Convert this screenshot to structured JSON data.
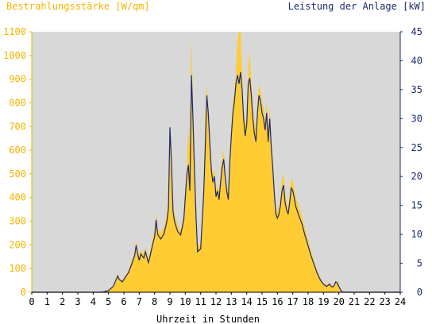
{
  "chart_data": {
    "type": "area",
    "title_left": "Bestrahlungsstärke [W/qm]",
    "title_right": "Leistung der Anlage [kW]",
    "xlabel": "Uhrzeit in Stunden",
    "x_ticks": [
      "0",
      "1",
      "2",
      "3",
      "4",
      "5",
      "6",
      "7",
      "8",
      "9",
      "10",
      "11",
      "12",
      "13",
      "14",
      "15",
      "16",
      "17",
      "18",
      "19",
      "20",
      "21",
      "22",
      "23",
      "24"
    ],
    "y_left_ticks": [
      "0",
      "100",
      "200",
      "300",
      "400",
      "500",
      "600",
      "700",
      "800",
      "900",
      "1000",
      "1100"
    ],
    "y_right_ticks": [
      "0",
      "5",
      "10",
      "15",
      "20",
      "25",
      "30",
      "35",
      "40",
      "45"
    ],
    "xlim": [
      0,
      24
    ],
    "ylim_left": [
      0,
      1100
    ],
    "ylim_right": [
      0,
      45
    ],
    "colors": {
      "plot_background": "#d8d8d8",
      "irradiance_fill": "#ffcc33",
      "power_line": "#1c2a6e",
      "left_axis": "#f5b400",
      "right_axis": "#1c2a6e"
    },
    "series": [
      {
        "name": "Bestrahlungsstärke [W/qm]",
        "axis": "left",
        "style": "area",
        "points": [
          [
            0,
            0
          ],
          [
            4.6,
            0
          ],
          [
            5.0,
            8
          ],
          [
            5.3,
            25
          ],
          [
            5.5,
            60
          ],
          [
            5.6,
            80
          ],
          [
            5.7,
            60
          ],
          [
            5.9,
            50
          ],
          [
            6.1,
            70
          ],
          [
            6.3,
            90
          ],
          [
            6.5,
            130
          ],
          [
            6.7,
            170
          ],
          [
            6.8,
            220
          ],
          [
            6.9,
            180
          ],
          [
            7.0,
            150
          ],
          [
            7.1,
            180
          ],
          [
            7.3,
            160
          ],
          [
            7.4,
            190
          ],
          [
            7.6,
            140
          ],
          [
            7.7,
            170
          ],
          [
            7.9,
            230
          ],
          [
            8.0,
            260
          ],
          [
            8.1,
            340
          ],
          [
            8.2,
            270
          ],
          [
            8.4,
            250
          ],
          [
            8.6,
            270
          ],
          [
            8.8,
            330
          ],
          [
            8.9,
            390
          ],
          [
            9.0,
            720
          ],
          [
            9.1,
            580
          ],
          [
            9.2,
            380
          ],
          [
            9.3,
            330
          ],
          [
            9.5,
            280
          ],
          [
            9.7,
            260
          ],
          [
            9.9,
            330
          ],
          [
            10.1,
            500
          ],
          [
            10.2,
            700
          ],
          [
            10.3,
            600
          ],
          [
            10.4,
            1080
          ],
          [
            10.5,
            800
          ],
          [
            10.6,
            550
          ],
          [
            10.7,
            350
          ],
          [
            10.8,
            200
          ],
          [
            11.0,
            200
          ],
          [
            11.2,
            480
          ],
          [
            11.3,
            740
          ],
          [
            11.4,
            880
          ],
          [
            11.5,
            800
          ],
          [
            11.6,
            650
          ],
          [
            11.7,
            540
          ],
          [
            11.8,
            500
          ],
          [
            11.9,
            520
          ],
          [
            12.0,
            430
          ],
          [
            12.1,
            450
          ],
          [
            12.2,
            420
          ],
          [
            12.3,
            500
          ],
          [
            12.4,
            560
          ],
          [
            12.5,
            600
          ],
          [
            12.6,
            520
          ],
          [
            12.7,
            450
          ],
          [
            12.8,
            420
          ],
          [
            12.9,
            580
          ],
          [
            13.0,
            700
          ],
          [
            13.1,
            800
          ],
          [
            13.2,
            850
          ],
          [
            13.3,
            930
          ],
          [
            13.4,
            1070
          ],
          [
            13.5,
            1100
          ],
          [
            13.6,
            1100
          ],
          [
            13.7,
            920
          ],
          [
            13.8,
            760
          ],
          [
            13.9,
            700
          ],
          [
            14.0,
            750
          ],
          [
            14.1,
            950
          ],
          [
            14.2,
            1020
          ],
          [
            14.3,
            880
          ],
          [
            14.4,
            780
          ],
          [
            14.5,
            720
          ],
          [
            14.6,
            680
          ],
          [
            14.7,
            800
          ],
          [
            14.8,
            880
          ],
          [
            14.9,
            850
          ],
          [
            15.0,
            800
          ],
          [
            15.1,
            780
          ],
          [
            15.2,
            720
          ],
          [
            15.3,
            800
          ],
          [
            15.4,
            680
          ],
          [
            15.5,
            780
          ],
          [
            15.6,
            650
          ],
          [
            15.7,
            560
          ],
          [
            15.8,
            440
          ],
          [
            15.9,
            360
          ],
          [
            16.0,
            340
          ],
          [
            16.1,
            360
          ],
          [
            16.2,
            400
          ],
          [
            16.3,
            480
          ],
          [
            16.4,
            500
          ],
          [
            16.5,
            420
          ],
          [
            16.6,
            380
          ],
          [
            16.7,
            360
          ],
          [
            16.8,
            420
          ],
          [
            16.9,
            480
          ],
          [
            17.0,
            470
          ],
          [
            17.1,
            440
          ],
          [
            17.2,
            400
          ],
          [
            17.4,
            360
          ],
          [
            17.6,
            320
          ],
          [
            17.8,
            270
          ],
          [
            18.0,
            220
          ],
          [
            18.2,
            170
          ],
          [
            18.4,
            130
          ],
          [
            18.6,
            90
          ],
          [
            18.8,
            60
          ],
          [
            19.0,
            40
          ],
          [
            19.2,
            30
          ],
          [
            19.4,
            40
          ],
          [
            19.5,
            30
          ],
          [
            19.6,
            25
          ],
          [
            19.7,
            35
          ],
          [
            19.8,
            50
          ],
          [
            19.9,
            45
          ],
          [
            20.0,
            30
          ],
          [
            20.1,
            15
          ],
          [
            20.2,
            5
          ],
          [
            20.3,
            0
          ],
          [
            24,
            0
          ]
        ]
      },
      {
        "name": "Leistung der Anlage [kW]",
        "axis": "right",
        "style": "line",
        "points": [
          [
            0,
            0
          ],
          [
            4.6,
            0
          ],
          [
            5.0,
            0.3
          ],
          [
            5.3,
            1
          ],
          [
            5.5,
            2.2
          ],
          [
            5.6,
            2.8
          ],
          [
            5.7,
            2.2
          ],
          [
            5.9,
            1.8
          ],
          [
            6.1,
            2.6
          ],
          [
            6.3,
            3.4
          ],
          [
            6.5,
            4.8
          ],
          [
            6.7,
            6.3
          ],
          [
            6.8,
            8.1
          ],
          [
            6.9,
            6.6
          ],
          [
            7.0,
            5.5
          ],
          [
            7.1,
            6.6
          ],
          [
            7.3,
            5.9
          ],
          [
            7.4,
            7
          ],
          [
            7.6,
            5.1
          ],
          [
            7.7,
            6.2
          ],
          [
            7.9,
            8.5
          ],
          [
            8.0,
            9.6
          ],
          [
            8.1,
            12.5
          ],
          [
            8.2,
            10
          ],
          [
            8.4,
            9.2
          ],
          [
            8.6,
            10
          ],
          [
            8.8,
            12.2
          ],
          [
            8.9,
            14.4
          ],
          [
            9.0,
            28.5
          ],
          [
            9.1,
            22.5
          ],
          [
            9.2,
            14
          ],
          [
            9.3,
            12.2
          ],
          [
            9.5,
            10.5
          ],
          [
            9.7,
            9.9
          ],
          [
            9.9,
            12.5
          ],
          [
            10.1,
            20.3
          ],
          [
            10.2,
            22
          ],
          [
            10.3,
            17.5
          ],
          [
            10.4,
            37.5
          ],
          [
            10.5,
            30
          ],
          [
            10.6,
            21
          ],
          [
            10.7,
            13
          ],
          [
            10.8,
            7
          ],
          [
            11.0,
            7.5
          ],
          [
            11.2,
            17
          ],
          [
            11.3,
            25
          ],
          [
            11.4,
            34
          ],
          [
            11.5,
            31
          ],
          [
            11.6,
            25.5
          ],
          [
            11.7,
            21
          ],
          [
            11.8,
            19
          ],
          [
            11.9,
            20
          ],
          [
            12.0,
            16.5
          ],
          [
            12.1,
            17.5
          ],
          [
            12.2,
            16
          ],
          [
            12.3,
            19
          ],
          [
            12.4,
            21.5
          ],
          [
            12.5,
            23
          ],
          [
            12.6,
            20
          ],
          [
            12.7,
            17.5
          ],
          [
            12.8,
            16
          ],
          [
            12.9,
            22.5
          ],
          [
            13.0,
            27
          ],
          [
            13.1,
            31
          ],
          [
            13.2,
            33
          ],
          [
            13.3,
            36
          ],
          [
            13.4,
            37.5
          ],
          [
            13.5,
            36
          ],
          [
            13.6,
            38
          ],
          [
            13.7,
            35
          ],
          [
            13.8,
            30
          ],
          [
            13.9,
            27
          ],
          [
            14.0,
            29
          ],
          [
            14.1,
            36
          ],
          [
            14.2,
            37
          ],
          [
            14.3,
            34
          ],
          [
            14.4,
            30
          ],
          [
            14.5,
            27.5
          ],
          [
            14.6,
            26
          ],
          [
            14.7,
            31
          ],
          [
            14.8,
            34
          ],
          [
            14.9,
            33
          ],
          [
            15.0,
            31
          ],
          [
            15.1,
            30
          ],
          [
            15.2,
            28
          ],
          [
            15.3,
            31
          ],
          [
            15.4,
            26
          ],
          [
            15.5,
            30
          ],
          [
            15.6,
            25
          ],
          [
            15.7,
            21.5
          ],
          [
            15.8,
            17
          ],
          [
            15.9,
            13.5
          ],
          [
            16.0,
            12.8
          ],
          [
            16.1,
            13.5
          ],
          [
            16.2,
            15
          ],
          [
            16.3,
            17.5
          ],
          [
            16.4,
            18.5
          ],
          [
            16.5,
            15.5
          ],
          [
            16.6,
            14.2
          ],
          [
            16.7,
            13.5
          ],
          [
            16.8,
            15.5
          ],
          [
            16.9,
            18
          ],
          [
            17.0,
            17.5
          ],
          [
            17.1,
            16.3
          ],
          [
            17.2,
            14.8
          ],
          [
            17.4,
            13.2
          ],
          [
            17.6,
            11.8
          ],
          [
            17.8,
            9.8
          ],
          [
            18.0,
            8
          ],
          [
            18.2,
            6.2
          ],
          [
            18.4,
            4.7
          ],
          [
            18.6,
            3.2
          ],
          [
            18.8,
            2.1
          ],
          [
            19.0,
            1.4
          ],
          [
            19.2,
            1
          ],
          [
            19.4,
            1.4
          ],
          [
            19.5,
            1
          ],
          [
            19.6,
            0.9
          ],
          [
            19.7,
            1.2
          ],
          [
            19.8,
            1.8
          ],
          [
            19.9,
            1.6
          ],
          [
            20.0,
            1
          ],
          [
            20.1,
            0.5
          ],
          [
            20.2,
            0.1
          ],
          [
            20.3,
            0
          ],
          [
            24,
            0
          ]
        ]
      }
    ]
  }
}
